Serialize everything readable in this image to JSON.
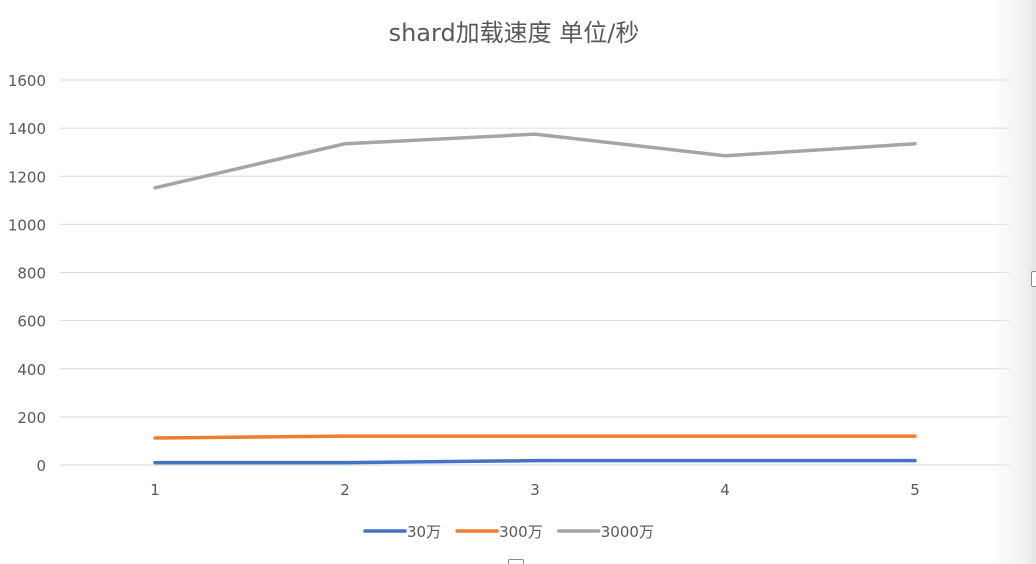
{
  "chart_data": {
    "type": "line",
    "title": "shard加载速度 单位/秒",
    "x": [
      "1",
      "2",
      "3",
      "4",
      "5"
    ],
    "y_ticks": [
      "0",
      "200",
      "400",
      "600",
      "800",
      "1000",
      "1200",
      "1400",
      "1600"
    ],
    "ylim": [
      0,
      1600
    ],
    "grid": true,
    "legend_position": "bottom",
    "series": [
      {
        "name": "30万",
        "color": "#4472c4",
        "values": [
          10,
          10,
          18,
          18,
          18
        ]
      },
      {
        "name": "300万",
        "color": "#ed7d31",
        "values": [
          112,
          120,
          120,
          120,
          120
        ]
      },
      {
        "name": "3000万",
        "color": "#a5a5a5",
        "values": [
          1152,
          1335,
          1375,
          1285,
          1335
        ]
      }
    ]
  }
}
